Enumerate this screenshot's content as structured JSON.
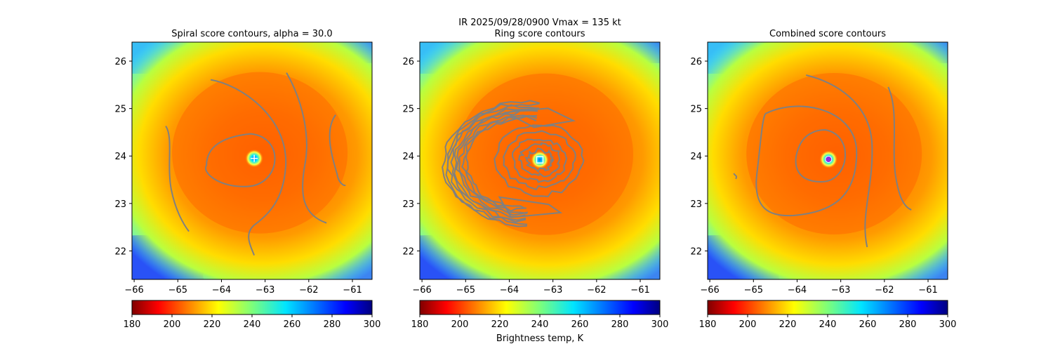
{
  "figure": {
    "suptitle_line1": "IR  2025/09/28/0900    Vmax = 135 kt",
    "colorbar_label": "Brightness temp, K"
  },
  "colors": {
    "contour": "#808080",
    "marker_panel1": "#ffffff",
    "marker_panel2": "#ffffff",
    "marker_panel3": "#8a2be2"
  },
  "chart_data": [
    {
      "type": "heatmap",
      "title": "Spiral score contours, alpha = 30.0",
      "xlim": [
        -66.05,
        -60.55
      ],
      "ylim": [
        21.4,
        26.4
      ],
      "xticks": [
        -66,
        -65,
        -64,
        -63,
        -62,
        -61
      ],
      "xtick_labels": [
        "−66",
        "−65",
        "−64",
        "−63",
        "−62",
        "−61"
      ],
      "yticks": [
        22,
        23,
        24,
        25,
        26
      ],
      "ytick_labels": [
        "22",
        "23",
        "24",
        "25",
        "26"
      ],
      "center": {
        "lon": -63.25,
        "lat": 23.95
      },
      "marker": "plus",
      "contour_style": "spiral",
      "colorbar": {
        "range": [
          180,
          300
        ],
        "ticks": [
          "180",
          "200",
          "220",
          "240",
          "260",
          "280",
          "300"
        ]
      }
    },
    {
      "type": "heatmap",
      "title": "Ring score contours",
      "xlim": [
        -66.05,
        -60.55
      ],
      "ylim": [
        21.4,
        26.4
      ],
      "xticks": [
        -66,
        -65,
        -64,
        -63,
        -62,
        -61
      ],
      "xtick_labels": [
        "−66",
        "−65",
        "−64",
        "−63",
        "−62",
        "−61"
      ],
      "yticks": [
        22,
        23,
        24,
        25,
        26
      ],
      "ytick_labels": [
        "22",
        "23",
        "24",
        "25",
        "26"
      ],
      "center": {
        "lon": -63.3,
        "lat": 23.92
      },
      "marker": "square",
      "contour_style": "ring",
      "colorbar": {
        "range": [
          180,
          300
        ],
        "ticks": [
          "180",
          "200",
          "220",
          "240",
          "260",
          "280",
          "300"
        ]
      }
    },
    {
      "type": "heatmap",
      "title": "Combined score contours",
      "xlim": [
        -66.05,
        -60.55
      ],
      "ylim": [
        21.4,
        26.4
      ],
      "xticks": [
        -66,
        -65,
        -64,
        -63,
        -62,
        -61
      ],
      "xtick_labels": [
        "−66",
        "−65",
        "−64",
        "−63",
        "−62",
        "−61"
      ],
      "yticks": [
        22,
        23,
        24,
        25,
        26
      ],
      "ytick_labels": [
        "22",
        "23",
        "24",
        "25",
        "26"
      ],
      "center": {
        "lon": -63.28,
        "lat": 23.93
      },
      "marker": "circle",
      "contour_style": "combined",
      "colorbar": {
        "range": [
          180,
          300
        ],
        "ticks": [
          "180",
          "200",
          "220",
          "240",
          "260",
          "280",
          "300"
        ]
      }
    }
  ]
}
